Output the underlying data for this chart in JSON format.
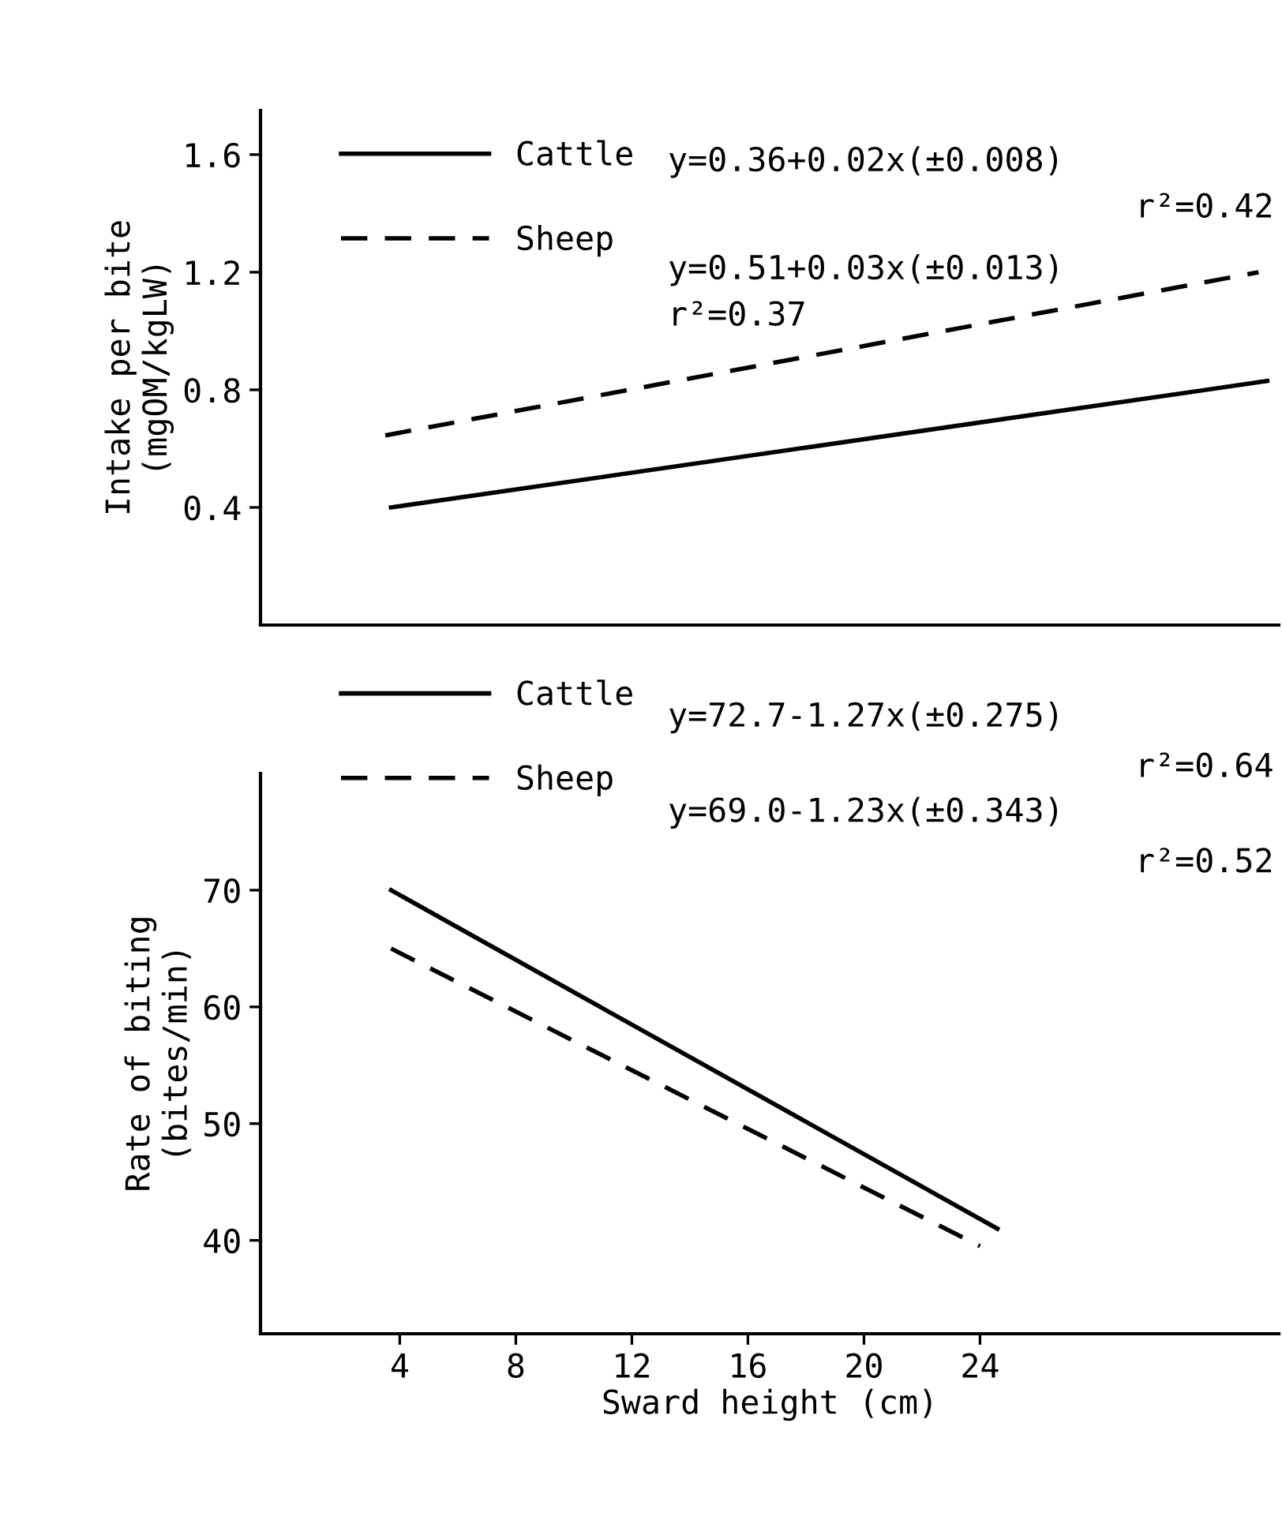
{
  "chart_data": [
    {
      "type": "line",
      "ylabel": "Intake per bite\n(mgOM/kgLW)",
      "xlim": [
        -0.8,
        34.3
      ],
      "xticks": [
        4,
        8,
        12,
        16,
        20,
        24
      ],
      "ylim": [
        0,
        1.75
      ],
      "yticks": [
        0.4,
        0.8,
        1.2,
        1.6
      ],
      "tick_labels": "y",
      "legend": "top left",
      "grid": false,
      "series": [
        {
          "name": "Cattle",
          "color": "#000000",
          "line_style": "solid",
          "x": [
            3.7,
            33.9
          ],
          "values": [
            0.4,
            0.83
          ]
        },
        {
          "name": "Sheep",
          "color": "#000000",
          "line_style": "dashed",
          "x": [
            3.5,
            33.6
          ],
          "values": [
            0.645,
            1.2
          ]
        }
      ],
      "annotations": [
        "y=0.36+0.02x(±0.008)",
        "r²=0.42",
        "y=0.51+0.03x(±0.013)",
        "r²=0.37"
      ]
    },
    {
      "type": "line",
      "xlabel": "Sward height (cm)",
      "ylabel": "Rate of biting\n(bites/min)",
      "xlim": [
        -0.8,
        34.3
      ],
      "xticks": [
        4,
        8,
        12,
        16,
        20,
        24
      ],
      "ylim": [
        32,
        80
      ],
      "yticks": [
        40,
        50,
        60,
        70
      ],
      "legend": "top left",
      "grid": false,
      "series": [
        {
          "name": "Cattle",
          "color": "#000000",
          "line_style": "solid",
          "x": [
            3.7,
            24.6
          ],
          "values": [
            70,
            41
          ]
        },
        {
          "name": "Sheep",
          "color": "#000000",
          "line_style": "dashed",
          "x": [
            3.7,
            24
          ],
          "values": [
            65,
            39.5
          ]
        }
      ],
      "annotations": [
        "y=72.7-1.27x(±0.275)",
        "r²=0.64",
        "y=69.0-1.23x(±0.343)",
        "r²=0.52"
      ]
    }
  ]
}
